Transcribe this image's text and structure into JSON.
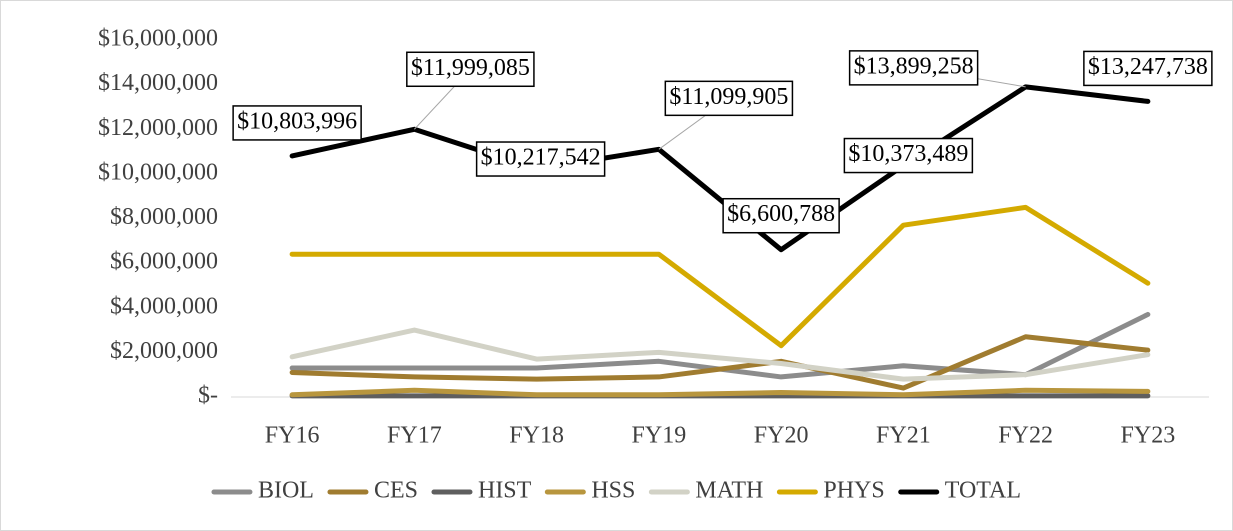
{
  "chart_data": {
    "type": "line",
    "categories": [
      "FY16",
      "FY17",
      "FY18",
      "FY19",
      "FY20",
      "FY21",
      "FY22",
      "FY23"
    ],
    "series": [
      {
        "name": "BIOL",
        "color": "#8c8c8c",
        "values": [
          1300000,
          1300000,
          1300000,
          1600000,
          900000,
          1400000,
          1000000,
          3700000
        ]
      },
      {
        "name": "CES",
        "color": "#a07c30",
        "values": [
          1100000,
          900000,
          800000,
          900000,
          1600000,
          400000,
          2700000,
          2100000
        ]
      },
      {
        "name": "HIST",
        "color": "#5f5f5f",
        "values": [
          50000,
          50000,
          50000,
          50000,
          50000,
          50000,
          50000,
          50000
        ]
      },
      {
        "name": "HSS",
        "color": "#b8963e",
        "values": [
          100000,
          300000,
          100000,
          100000,
          200000,
          100000,
          300000,
          250000
        ]
      },
      {
        "name": "MATH",
        "color": "#d2d2c6",
        "values": [
          1800000,
          3000000,
          1700000,
          2000000,
          1500000,
          800000,
          1000000,
          1900000
        ]
      },
      {
        "name": "PHYS",
        "color": "#d4aa00",
        "values": [
          6400000,
          6400000,
          6400000,
          6400000,
          2300000,
          7700000,
          8500000,
          5100000
        ]
      },
      {
        "name": "TOTAL",
        "color": "#000000",
        "values": [
          10803996,
          11999085,
          10217542,
          11099905,
          6600788,
          10373489,
          13899258,
          13247738
        ],
        "value_labels": [
          "$10,803,996",
          "$11,999,085",
          "$10,217,542",
          "$11,099,905",
          "$6,600,788",
          "$10,373,489",
          "$13,899,258",
          "$13,247,738"
        ]
      }
    ],
    "ylim": [
      0,
      16000000
    ],
    "yticks": [
      {
        "value": 0,
        "label": "$-"
      },
      {
        "value": 2000000,
        "label": "$2,000,000"
      },
      {
        "value": 4000000,
        "label": "$4,000,000"
      },
      {
        "value": 6000000,
        "label": "$6,000,000"
      },
      {
        "value": 8000000,
        "label": "$8,000,000"
      },
      {
        "value": 10000000,
        "label": "$10,000,000"
      },
      {
        "value": 12000000,
        "label": "$12,000,000"
      },
      {
        "value": 14000000,
        "label": "$14,000,000"
      },
      {
        "value": 16000000,
        "label": "$16,000,000"
      }
    ],
    "grid": false,
    "legend": "bottom"
  }
}
